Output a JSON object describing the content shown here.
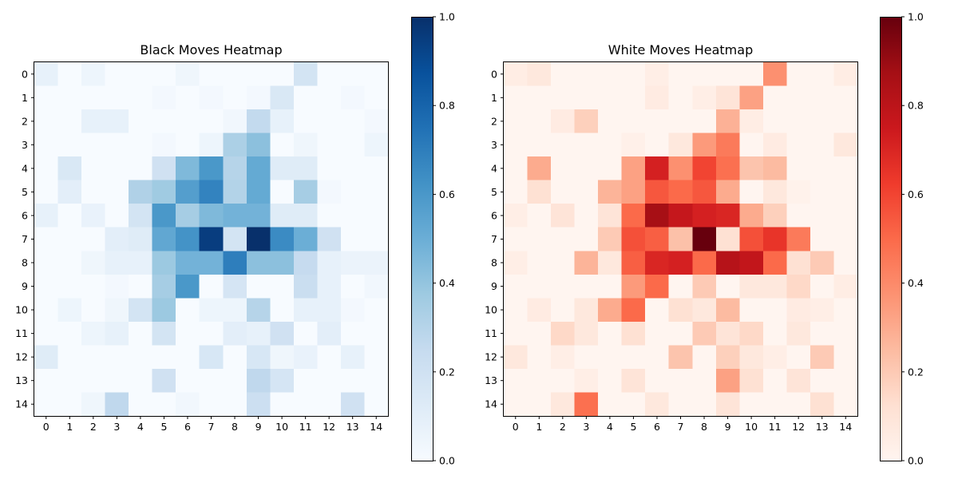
{
  "chart_data": [
    {
      "type": "heatmap",
      "title": "Black Moves Heatmap",
      "colormap": "Blues",
      "x_ticks": [
        "0",
        "1",
        "2",
        "3",
        "4",
        "5",
        "6",
        "7",
        "8",
        "9",
        "10",
        "11",
        "12",
        "13",
        "14"
      ],
      "y_ticks": [
        "0",
        "1",
        "2",
        "3",
        "4",
        "5",
        "6",
        "7",
        "8",
        "9",
        "10",
        "11",
        "12",
        "13",
        "14"
      ],
      "vmin": 0,
      "vmax": 1,
      "colorbar_ticks": [
        "0.0",
        "0.2",
        "0.4",
        "0.6",
        "0.8",
        "1.0"
      ],
      "values": [
        [
          0.08,
          0,
          0.05,
          0,
          0,
          0,
          0.04,
          0,
          0,
          0,
          0,
          0.18,
          0,
          0,
          0
        ],
        [
          0,
          0,
          0,
          0,
          0,
          0.02,
          0,
          0.02,
          0,
          0.02,
          0.15,
          0,
          0,
          0.02,
          0
        ],
        [
          0,
          0,
          0.08,
          0.08,
          0,
          0,
          0,
          0,
          0.03,
          0.26,
          0.08,
          0,
          0,
          0,
          0.02
        ],
        [
          0,
          0,
          0,
          0,
          0,
          0.02,
          0,
          0.05,
          0.33,
          0.42,
          0,
          0.04,
          0,
          0,
          0.05
        ],
        [
          0,
          0.15,
          0,
          0,
          0,
          0.2,
          0.45,
          0.6,
          0.3,
          0.52,
          0.12,
          0.12,
          0,
          0,
          0
        ],
        [
          0,
          0.1,
          0,
          0,
          0.32,
          0.37,
          0.57,
          0.68,
          0.31,
          0.52,
          0,
          0.35,
          0.02,
          0,
          0
        ],
        [
          0.08,
          0,
          0.07,
          0,
          0.18,
          0.6,
          0.35,
          0.45,
          0.48,
          0.48,
          0.12,
          0.12,
          0,
          0,
          0
        ],
        [
          0,
          0,
          0,
          0.1,
          0.12,
          0.53,
          0.62,
          0.95,
          0.18,
          1.0,
          0.65,
          0.5,
          0.2,
          0,
          0
        ],
        [
          0,
          0,
          0.04,
          0.08,
          0.08,
          0.38,
          0.48,
          0.48,
          0.7,
          0.42,
          0.42,
          0.25,
          0.08,
          0.06,
          0.06
        ],
        [
          0,
          0,
          0,
          0.02,
          0,
          0.35,
          0.6,
          0,
          0.17,
          0,
          0,
          0.23,
          0.08,
          0,
          0.03
        ],
        [
          0,
          0.05,
          0,
          0.04,
          0.18,
          0.38,
          0,
          0.05,
          0.05,
          0.3,
          0,
          0.08,
          0.08,
          0.02,
          0
        ],
        [
          0,
          0,
          0.05,
          0.08,
          0,
          0.18,
          0,
          0,
          0.1,
          0.08,
          0.2,
          0,
          0.1,
          0,
          0
        ],
        [
          0.12,
          0,
          0,
          0,
          0,
          0,
          0,
          0.16,
          0,
          0.16,
          0.04,
          0.07,
          0,
          0.08,
          0
        ],
        [
          0,
          0,
          0,
          0,
          0,
          0.2,
          0,
          0,
          0,
          0.27,
          0.17,
          0,
          0,
          0,
          0
        ],
        [
          0,
          0,
          0.04,
          0.27,
          0,
          0,
          0.03,
          0,
          0,
          0.22,
          0,
          0,
          0,
          0.2,
          0
        ]
      ]
    },
    {
      "type": "heatmap",
      "title": "White Moves Heatmap",
      "colormap": "Reds",
      "x_ticks": [
        "0",
        "1",
        "2",
        "3",
        "4",
        "5",
        "6",
        "7",
        "8",
        "9",
        "10",
        "11",
        "12",
        "13",
        "14"
      ],
      "y_ticks": [
        "0",
        "1",
        "2",
        "3",
        "4",
        "5",
        "6",
        "7",
        "8",
        "9",
        "10",
        "11",
        "12",
        "13",
        "14"
      ],
      "vmin": 0,
      "vmax": 1,
      "colorbar_ticks": [
        "0.0",
        "0.2",
        "0.4",
        "0.6",
        "0.8",
        "1.0"
      ],
      "values": [
        [
          0.05,
          0.08,
          0,
          0,
          0,
          0,
          0.04,
          0,
          0,
          0,
          0,
          0.38,
          0,
          0,
          0.05
        ],
        [
          0,
          0,
          0,
          0,
          0,
          0,
          0.06,
          0,
          0.04,
          0.1,
          0.33,
          0,
          0,
          0,
          0
        ],
        [
          0,
          0,
          0.06,
          0.18,
          0,
          0,
          0,
          0,
          0,
          0.28,
          0.05,
          0,
          0,
          0,
          0
        ],
        [
          0,
          0,
          0,
          0,
          0,
          0.03,
          0,
          0.08,
          0.35,
          0.45,
          0,
          0.06,
          0,
          0,
          0.08
        ],
        [
          0,
          0.3,
          0,
          0,
          0,
          0.33,
          0.72,
          0.38,
          0.6,
          0.48,
          0.22,
          0.25,
          0,
          0,
          0
        ],
        [
          0,
          0.12,
          0,
          0,
          0.27,
          0.33,
          0.55,
          0.5,
          0.55,
          0.3,
          0,
          0.08,
          0.02,
          0,
          0
        ],
        [
          0.04,
          0,
          0.1,
          0,
          0.1,
          0.5,
          0.87,
          0.77,
          0.72,
          0.7,
          0.3,
          0.18,
          0,
          0,
          0
        ],
        [
          0,
          0,
          0,
          0,
          0.2,
          0.57,
          0.53,
          0.23,
          1.0,
          0.12,
          0.57,
          0.65,
          0.45,
          0,
          0
        ],
        [
          0.04,
          0,
          0,
          0.27,
          0.08,
          0.53,
          0.7,
          0.72,
          0.5,
          0.82,
          0.78,
          0.5,
          0.12,
          0.2,
          0
        ],
        [
          0,
          0,
          0,
          0,
          0,
          0.35,
          0.5,
          0,
          0.2,
          0,
          0.08,
          0.08,
          0.15,
          0,
          0.05
        ],
        [
          0,
          0.06,
          0,
          0.08,
          0.3,
          0.5,
          0,
          0.12,
          0.08,
          0.25,
          0,
          0,
          0.06,
          0.04,
          0
        ],
        [
          0,
          0,
          0.15,
          0.08,
          0,
          0.12,
          0,
          0,
          0.2,
          0.1,
          0.15,
          0,
          0.08,
          0,
          0
        ],
        [
          0.08,
          0,
          0.04,
          0,
          0,
          0,
          0,
          0.22,
          0,
          0.18,
          0.08,
          0.04,
          0,
          0.2,
          0
        ],
        [
          0,
          0,
          0,
          0.04,
          0,
          0.1,
          0,
          0,
          0,
          0.33,
          0.12,
          0,
          0.1,
          0,
          0
        ],
        [
          0,
          0,
          0.08,
          0.48,
          0,
          0,
          0.08,
          0,
          0,
          0.1,
          0,
          0,
          0,
          0.12,
          0
        ]
      ]
    }
  ]
}
